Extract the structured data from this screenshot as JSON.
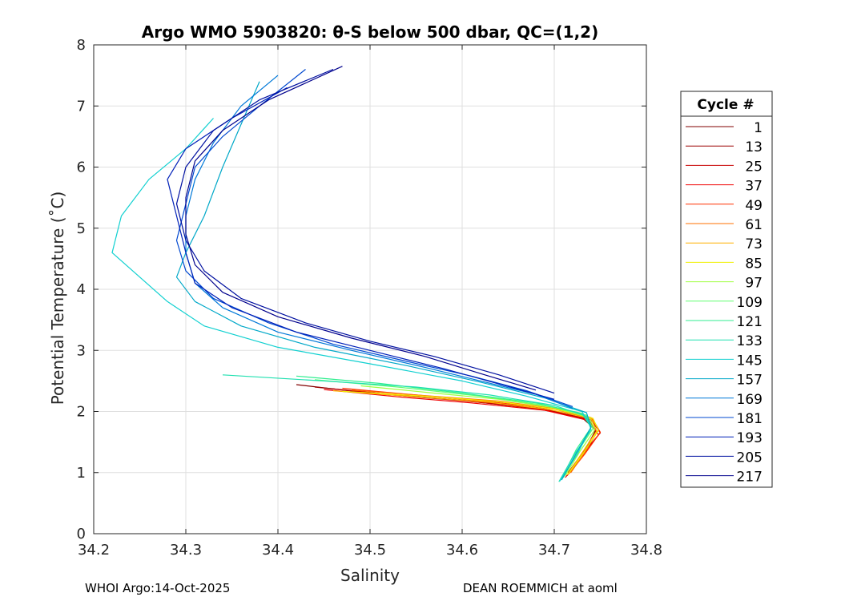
{
  "chart_data": {
    "type": "line",
    "title": "Argo WMO 5903820: θ-S below 500 dbar,  QC=(1,2)",
    "xlabel": "Salinity",
    "ylabel": "Potential Temperature (˚C)",
    "xlim": [
      34.2,
      34.8
    ],
    "ylim": [
      0,
      8
    ],
    "xticks": [
      "34.2",
      "34.3",
      "34.4",
      "34.5",
      "34.6",
      "34.7",
      "34.8"
    ],
    "yticks": [
      "0",
      "1",
      "2",
      "3",
      "4",
      "5",
      "6",
      "7",
      "8"
    ],
    "grid": true,
    "legend": {
      "title": "Cycle #",
      "placement": "outside-right",
      "entries": [
        {
          "label": "1",
          "color": "#800000"
        },
        {
          "label": "13",
          "color": "#9c0000"
        },
        {
          "label": "25",
          "color": "#c80000"
        },
        {
          "label": "37",
          "color": "#f00000"
        },
        {
          "label": "49",
          "color": "#ff3000"
        },
        {
          "label": "61",
          "color": "#ff7000"
        },
        {
          "label": "73",
          "color": "#ffb000"
        },
        {
          "label": "85",
          "color": "#f0f000"
        },
        {
          "label": "97",
          "color": "#a0ff40"
        },
        {
          "label": "109",
          "color": "#60ff70"
        },
        {
          "label": "121",
          "color": "#30ee90"
        },
        {
          "label": "133",
          "color": "#20e0b0"
        },
        {
          "label": "145",
          "color": "#10d0d0"
        },
        {
          "label": "157",
          "color": "#00a8c8"
        },
        {
          "label": "169",
          "color": "#0078d8"
        },
        {
          "label": "181",
          "color": "#0048d0"
        },
        {
          "label": "193",
          "color": "#0020b8"
        },
        {
          "label": "205",
          "color": "#0010a0"
        },
        {
          "label": "217",
          "color": "#00008c"
        }
      ]
    },
    "series": [
      {
        "name": "1",
        "points": [
          [
            34.42,
            2.44
          ],
          [
            34.5,
            2.3
          ],
          [
            34.6,
            2.18
          ],
          [
            34.68,
            2.05
          ],
          [
            34.73,
            1.9
          ],
          [
            34.745,
            1.7
          ],
          [
            34.735,
            1.4
          ],
          [
            34.72,
            1.1
          ]
        ]
      },
      {
        "name": "13",
        "points": [
          [
            34.44,
            2.4
          ],
          [
            34.52,
            2.28
          ],
          [
            34.61,
            2.17
          ],
          [
            34.69,
            2.04
          ],
          [
            34.735,
            1.88
          ],
          [
            34.745,
            1.68
          ],
          [
            34.732,
            1.35
          ],
          [
            34.715,
            1.0
          ]
        ]
      },
      {
        "name": "25",
        "points": [
          [
            34.46,
            2.37
          ],
          [
            34.54,
            2.25
          ],
          [
            34.62,
            2.15
          ],
          [
            34.69,
            2.03
          ],
          [
            34.74,
            1.86
          ],
          [
            34.75,
            1.65
          ],
          [
            34.73,
            1.3
          ],
          [
            34.714,
            0.95
          ]
        ]
      },
      {
        "name": "37",
        "points": [
          [
            34.45,
            2.36
          ],
          [
            34.53,
            2.24
          ],
          [
            34.61,
            2.14
          ],
          [
            34.69,
            2.02
          ],
          [
            34.738,
            1.85
          ],
          [
            34.748,
            1.62
          ],
          [
            34.73,
            1.25
          ],
          [
            34.712,
            0.92
          ]
        ]
      },
      {
        "name": "49",
        "points": [
          [
            34.47,
            2.38
          ],
          [
            34.55,
            2.27
          ],
          [
            34.63,
            2.16
          ],
          [
            34.7,
            2.04
          ],
          [
            34.742,
            1.87
          ],
          [
            34.75,
            1.66
          ],
          [
            34.733,
            1.3
          ],
          [
            34.716,
            0.98
          ]
        ]
      },
      {
        "name": "61",
        "points": [
          [
            34.48,
            2.35
          ],
          [
            34.56,
            2.26
          ],
          [
            34.64,
            2.17
          ],
          [
            34.7,
            2.05
          ],
          [
            34.74,
            1.9
          ],
          [
            34.748,
            1.7
          ],
          [
            34.734,
            1.35
          ],
          [
            34.718,
            1.0
          ]
        ]
      },
      {
        "name": "73",
        "points": [
          [
            34.46,
            2.34
          ],
          [
            34.55,
            2.24
          ],
          [
            34.63,
            2.15
          ],
          [
            34.695,
            2.03
          ],
          [
            34.74,
            1.88
          ],
          [
            34.746,
            1.68
          ],
          [
            34.73,
            1.32
          ],
          [
            34.714,
            0.96
          ]
        ]
      },
      {
        "name": "85",
        "points": [
          [
            34.47,
            2.33
          ],
          [
            34.56,
            2.25
          ],
          [
            34.64,
            2.16
          ],
          [
            34.7,
            2.04
          ],
          [
            34.742,
            1.89
          ],
          [
            34.748,
            1.69
          ],
          [
            34.732,
            1.33
          ],
          [
            34.715,
            0.97
          ]
        ]
      },
      {
        "name": "97",
        "points": [
          [
            34.49,
            2.42
          ],
          [
            34.57,
            2.3
          ],
          [
            34.64,
            2.2
          ],
          [
            34.7,
            2.06
          ],
          [
            34.738,
            1.9
          ],
          [
            34.744,
            1.7
          ],
          [
            34.728,
            1.35
          ],
          [
            34.712,
            0.95
          ]
        ]
      },
      {
        "name": "109",
        "points": [
          [
            34.44,
            2.52
          ],
          [
            34.53,
            2.4
          ],
          [
            34.62,
            2.25
          ],
          [
            34.69,
            2.1
          ],
          [
            34.735,
            1.94
          ],
          [
            34.742,
            1.72
          ],
          [
            34.726,
            1.36
          ],
          [
            34.71,
            0.92
          ]
        ]
      },
      {
        "name": "121",
        "points": [
          [
            34.42,
            2.58
          ],
          [
            34.51,
            2.46
          ],
          [
            34.6,
            2.3
          ],
          [
            34.68,
            2.14
          ],
          [
            34.73,
            1.97
          ],
          [
            34.74,
            1.74
          ],
          [
            34.724,
            1.38
          ],
          [
            34.708,
            0.9
          ]
        ]
      },
      {
        "name": "133",
        "points": [
          [
            34.34,
            2.6
          ],
          [
            34.45,
            2.5
          ],
          [
            34.55,
            2.4
          ],
          [
            34.63,
            2.27
          ],
          [
            34.7,
            2.1
          ],
          [
            34.735,
            1.92
          ],
          [
            34.74,
            1.7
          ],
          [
            34.722,
            1.3
          ],
          [
            34.705,
            0.85
          ]
        ]
      },
      {
        "name": "145",
        "points": [
          [
            34.33,
            6.8
          ],
          [
            34.3,
            6.3
          ],
          [
            34.26,
            5.8
          ],
          [
            34.23,
            5.2
          ],
          [
            34.22,
            4.6
          ],
          [
            34.25,
            4.2
          ],
          [
            34.28,
            3.8
          ],
          [
            34.32,
            3.4
          ],
          [
            34.4,
            3.05
          ],
          [
            34.5,
            2.78
          ],
          [
            34.6,
            2.5
          ],
          [
            34.67,
            2.25
          ],
          [
            34.73,
            2.0
          ],
          [
            34.74,
            1.75
          ],
          [
            34.725,
            1.3
          ],
          [
            34.706,
            0.86
          ]
        ]
      },
      {
        "name": "157",
        "points": [
          [
            34.38,
            7.4
          ],
          [
            34.36,
            6.7
          ],
          [
            34.34,
            6.0
          ],
          [
            34.32,
            5.2
          ],
          [
            34.3,
            4.6
          ],
          [
            34.29,
            4.2
          ],
          [
            34.31,
            3.8
          ],
          [
            34.36,
            3.4
          ],
          [
            34.44,
            3.05
          ],
          [
            34.54,
            2.75
          ],
          [
            34.62,
            2.48
          ],
          [
            34.69,
            2.22
          ],
          [
            34.735,
            1.98
          ],
          [
            34.74,
            1.74
          ],
          [
            34.724,
            1.32
          ],
          [
            34.708,
            0.88
          ]
        ]
      },
      {
        "name": "169",
        "points": [
          [
            34.4,
            7.5
          ],
          [
            34.36,
            7.0
          ],
          [
            34.33,
            6.4
          ],
          [
            34.31,
            5.8
          ],
          [
            34.3,
            5.2
          ],
          [
            34.3,
            4.6
          ],
          [
            34.31,
            4.1
          ],
          [
            34.34,
            3.7
          ],
          [
            34.4,
            3.3
          ],
          [
            34.48,
            3.0
          ],
          [
            34.56,
            2.72
          ],
          [
            34.62,
            2.5
          ],
          [
            34.68,
            2.28
          ],
          [
            34.72,
            2.05
          ]
        ]
      },
      {
        "name": "181",
        "points": [
          [
            34.43,
            7.6
          ],
          [
            34.38,
            7.0
          ],
          [
            34.34,
            6.5
          ],
          [
            34.31,
            6.0
          ],
          [
            34.3,
            5.4
          ],
          [
            34.29,
            4.8
          ],
          [
            34.3,
            4.3
          ],
          [
            34.33,
            3.85
          ],
          [
            34.39,
            3.45
          ],
          [
            34.46,
            3.1
          ],
          [
            34.54,
            2.82
          ],
          [
            34.61,
            2.58
          ],
          [
            34.67,
            2.34
          ],
          [
            34.72,
            2.08
          ]
        ]
      },
      {
        "name": "193",
        "points": [
          [
            34.41,
            7.3
          ],
          [
            34.35,
            6.8
          ],
          [
            34.3,
            6.3
          ],
          [
            34.28,
            5.8
          ],
          [
            34.29,
            5.2
          ],
          [
            34.3,
            4.6
          ],
          [
            34.31,
            4.1
          ],
          [
            34.35,
            3.7
          ],
          [
            34.42,
            3.3
          ],
          [
            34.5,
            3.0
          ],
          [
            34.58,
            2.7
          ],
          [
            34.64,
            2.45
          ],
          [
            34.7,
            2.2
          ]
        ]
      },
      {
        "name": "205",
        "points": [
          [
            34.46,
            7.6
          ],
          [
            34.38,
            7.1
          ],
          [
            34.33,
            6.6
          ],
          [
            34.3,
            6.0
          ],
          [
            34.29,
            5.4
          ],
          [
            34.3,
            4.8
          ],
          [
            34.32,
            4.3
          ],
          [
            34.36,
            3.85
          ],
          [
            34.43,
            3.45
          ],
          [
            34.5,
            3.15
          ],
          [
            34.57,
            2.9
          ],
          [
            34.64,
            2.6
          ],
          [
            34.7,
            2.3
          ]
        ]
      },
      {
        "name": "217",
        "points": [
          [
            34.47,
            7.65
          ],
          [
            34.39,
            7.1
          ],
          [
            34.34,
            6.6
          ],
          [
            34.31,
            6.1
          ],
          [
            34.3,
            5.5
          ],
          [
            34.3,
            4.9
          ],
          [
            34.31,
            4.4
          ],
          [
            34.34,
            3.95
          ],
          [
            34.4,
            3.55
          ],
          [
            34.48,
            3.2
          ],
          [
            34.56,
            2.9
          ],
          [
            34.62,
            2.62
          ],
          [
            34.68,
            2.35
          ]
        ]
      }
    ]
  },
  "footer": {
    "left": "WHOI Argo:14-Oct-2025",
    "right": "DEAN ROEMMICH at aoml"
  }
}
